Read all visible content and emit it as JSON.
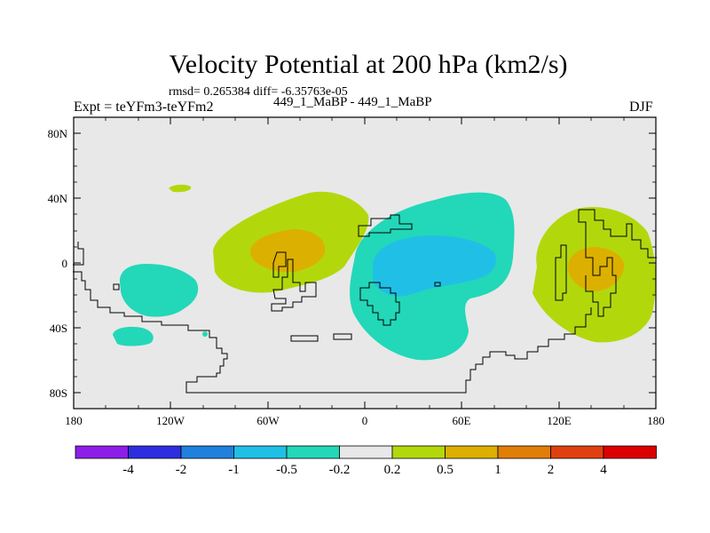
{
  "chart_data": {
    "type": "contour_map",
    "title": "Velocity Potential at 200 hPa (km2/s)",
    "rmsd_label": "rmsd= 0.265384 diff= -6.35763e-05",
    "experiment_label": "Expt = teYFm3-teYFm2",
    "cases_label": "449_1_MaBP - 449_1_MaBP",
    "season": "DJF",
    "x_ticks": [
      "180",
      "120W",
      "60W",
      "0",
      "60E",
      "120E",
      "180"
    ],
    "y_ticks": [
      "80N",
      "40N",
      "0",
      "40S",
      "80S"
    ],
    "xlim": [
      -180,
      180
    ],
    "ylim": [
      -90,
      90
    ],
    "colorbar": {
      "labels": [
        "-4",
        "-2",
        "-1",
        "-0.5",
        "-0.2",
        "0.2",
        "0.5",
        "1",
        "2",
        "4"
      ],
      "colors": [
        "#8c1ee8",
        "#2e2ee0",
        "#1f80dd",
        "#20c0e6",
        "#22d8b8",
        "#e8e8e8",
        "#b2d80c",
        "#dcb000",
        "#e07e08",
        "#e04010",
        "#dd0000"
      ]
    },
    "features": [
      {
        "name": "positive anomaly over Atlantic / South America",
        "level_range": [
          0.2,
          1
        ],
        "center": [
          -45,
          5
        ]
      },
      {
        "name": "positive anomaly over Maritime Continent / West Pacific",
        "level_range": [
          0.2,
          1
        ],
        "center": [
          138,
          -5
        ]
      },
      {
        "name": "negative anomaly over Africa / Indian Ocean",
        "level_range": [
          -1,
          -0.2
        ],
        "center": [
          35,
          -5
        ]
      },
      {
        "name": "negative anomaly over tropical East Pacific",
        "level_range": [
          -0.5,
          -0.2
        ],
        "center": [
          -140,
          -20
        ]
      }
    ]
  }
}
